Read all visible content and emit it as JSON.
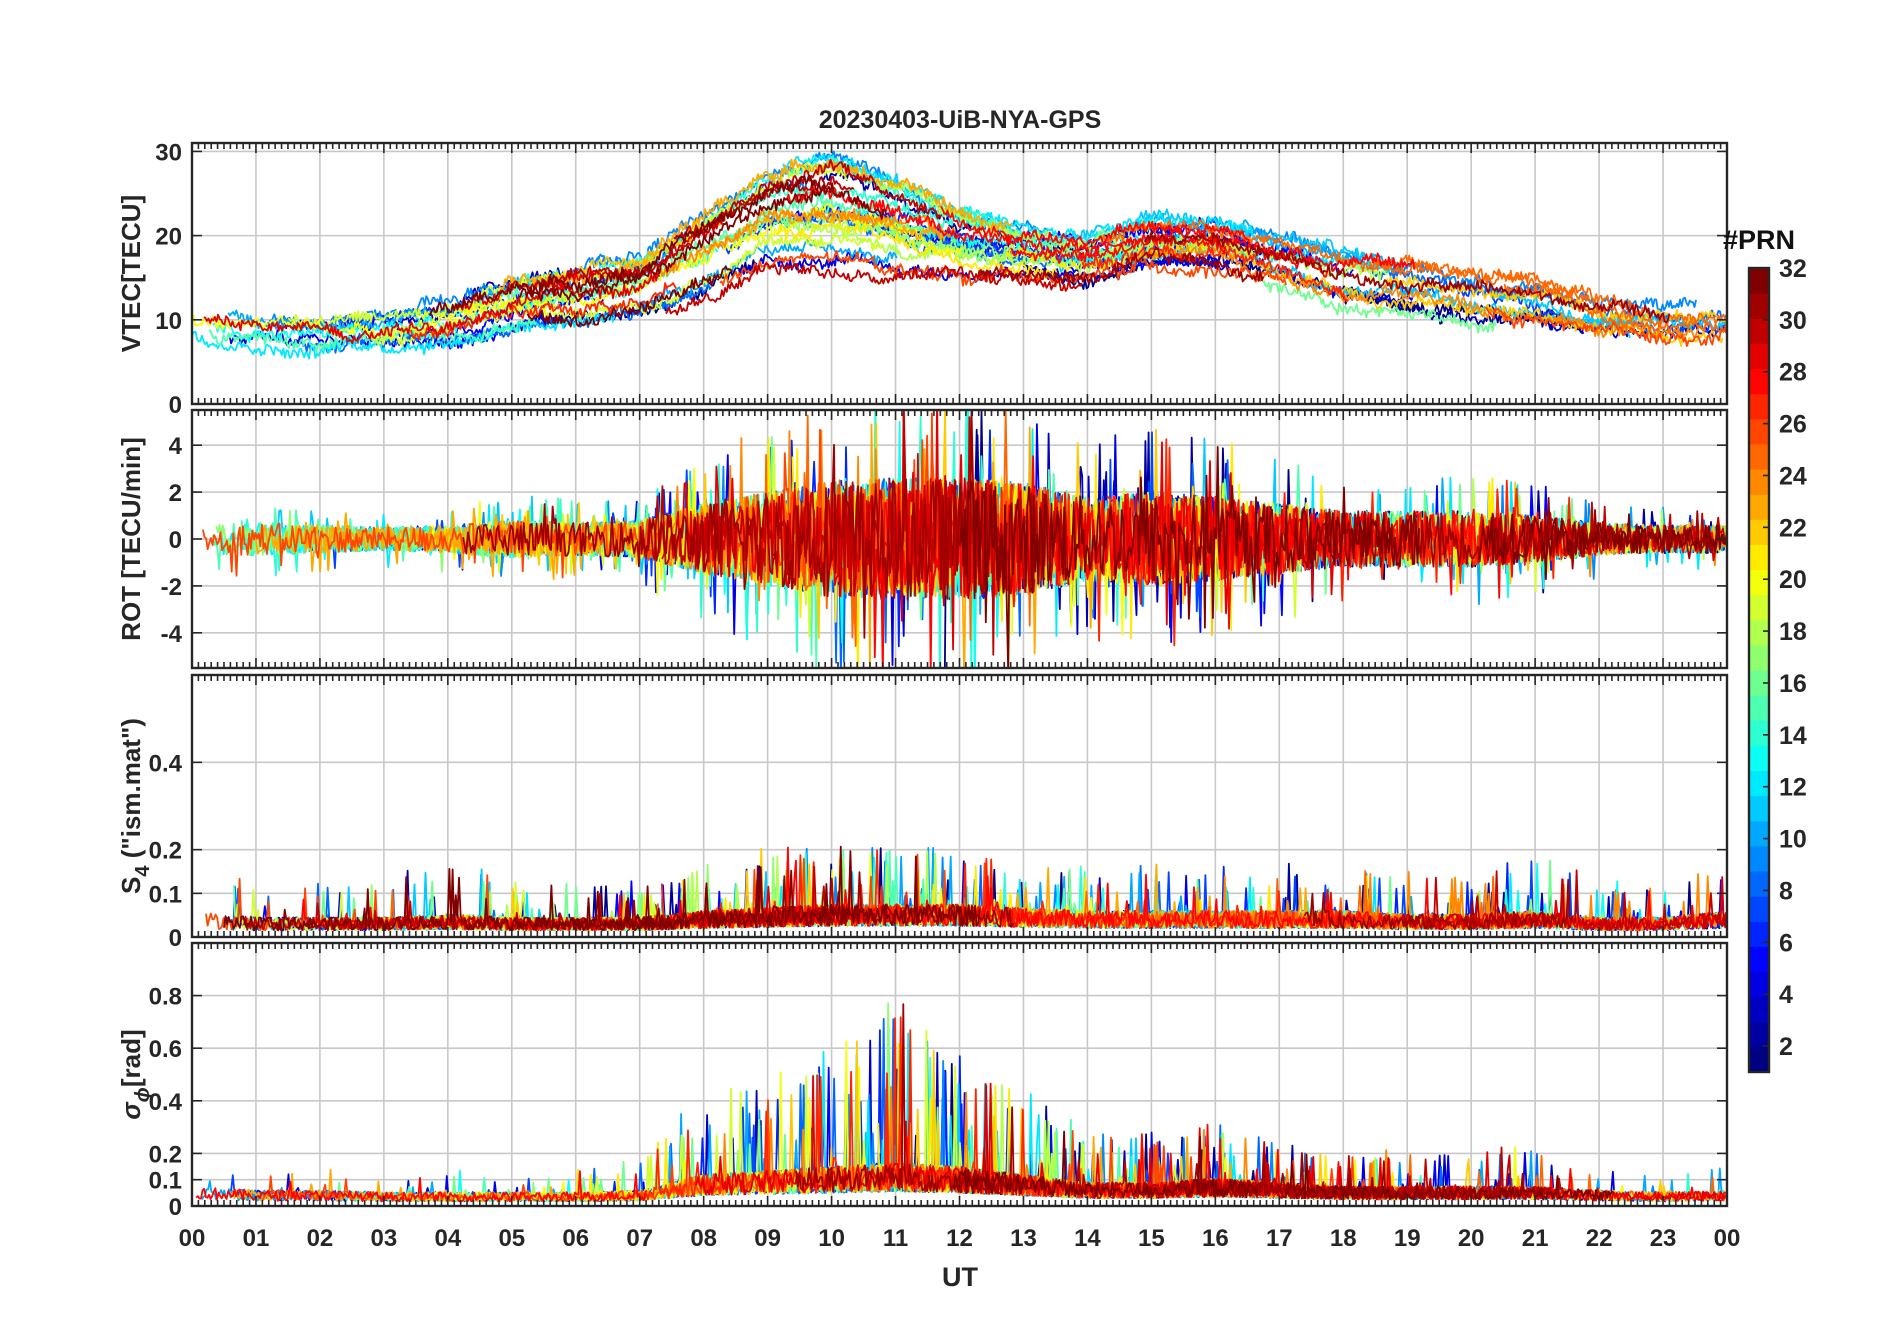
{
  "chart_data": {
    "type": "line",
    "title": "20230403-UiB-NYA-GPS",
    "xlabel": "UT",
    "x_range": [
      0,
      24
    ],
    "x_tick_labels": [
      "00",
      "01",
      "02",
      "03",
      "04",
      "05",
      "06",
      "07",
      "08",
      "09",
      "10",
      "11",
      "12",
      "13",
      "14",
      "15",
      "16",
      "17",
      "18",
      "19",
      "20",
      "21",
      "22",
      "23",
      "00"
    ],
    "grid": true,
    "colorbar": {
      "title": "#PRN",
      "range": [
        1,
        32
      ],
      "ticks": [
        2,
        4,
        6,
        8,
        10,
        12,
        14,
        16,
        18,
        20,
        22,
        24,
        26,
        28,
        30,
        32
      ],
      "colormap": "jet",
      "placement": "right"
    },
    "panels": [
      {
        "id": "vtec",
        "ylabel": "VTEC[TECU]",
        "ylim": [
          0,
          31
        ],
        "yticks": [
          0,
          10,
          20,
          30
        ],
        "envelope": {
          "hours": [
            0,
            1,
            2,
            3,
            4,
            5,
            6,
            7,
            8,
            9,
            10,
            11,
            12,
            13,
            14,
            15,
            16,
            17,
            18,
            19,
            20,
            21,
            22,
            23,
            24
          ],
          "typical": [
            10,
            9,
            8.5,
            9,
            10,
            12,
            13,
            14,
            18,
            22,
            23,
            21,
            19,
            18,
            17,
            19,
            19,
            17,
            15,
            14,
            13,
            12,
            10,
            9,
            9
          ],
          "spread": [
            2,
            2,
            2,
            2,
            2.5,
            3,
            3.5,
            4,
            5,
            6,
            7,
            6,
            4,
            3,
            2.5,
            3,
            3,
            3,
            3,
            3,
            3,
            3,
            2.5,
            2,
            2
          ]
        }
      },
      {
        "id": "rot",
        "ylabel": "ROT [TECU/min]",
        "ylim": [
          -5.5,
          5.5
        ],
        "yticks": [
          -4,
          -2,
          0,
          2,
          4
        ],
        "envelope": {
          "hours": [
            0,
            1,
            2,
            3,
            4,
            5,
            6,
            7,
            8,
            9,
            10,
            11,
            12,
            13,
            14,
            15,
            16,
            17,
            18,
            19,
            20,
            21,
            22,
            23,
            24
          ],
          "typical": [
            0,
            0,
            0,
            0,
            0,
            0,
            0,
            0,
            0,
            0,
            0,
            0,
            0,
            0,
            0,
            0,
            0,
            0,
            0,
            0,
            0,
            0,
            0,
            0,
            0
          ],
          "spread": [
            0.6,
            0.7,
            0.6,
            0.5,
            0.6,
            0.8,
            0.7,
            0.8,
            1.5,
            2,
            2.5,
            2.6,
            2.6,
            2.4,
            1.8,
            2,
            1.8,
            1.5,
            1.2,
            1.2,
            1.2,
            1,
            0.7,
            0.6,
            0.6
          ]
        }
      },
      {
        "id": "s4",
        "ylabel": "S",
        "ylabel_sub": "4",
        "ylabel_rest": " (\"ism.mat\")",
        "ylim": [
          0,
          0.6
        ],
        "yticks": [
          0,
          0.1,
          0.2,
          0.4
        ],
        "envelope": {
          "hours": [
            0,
            1,
            2,
            3,
            4,
            5,
            6,
            7,
            8,
            9,
            10,
            11,
            12,
            13,
            14,
            15,
            16,
            17,
            18,
            19,
            20,
            21,
            22,
            23,
            24
          ],
          "typical": [
            0.04,
            0.03,
            0.03,
            0.03,
            0.035,
            0.03,
            0.03,
            0.03,
            0.04,
            0.045,
            0.05,
            0.05,
            0.05,
            0.045,
            0.04,
            0.04,
            0.04,
            0.04,
            0.04,
            0.035,
            0.035,
            0.04,
            0.03,
            0.03,
            0.04
          ],
          "spread": [
            0.04,
            0.03,
            0.03,
            0.03,
            0.05,
            0.03,
            0.03,
            0.03,
            0.04,
            0.05,
            0.05,
            0.06,
            0.05,
            0.04,
            0.04,
            0.04,
            0.04,
            0.04,
            0.04,
            0.04,
            0.04,
            0.05,
            0.03,
            0.03,
            0.04
          ]
        }
      },
      {
        "id": "sigma",
        "ylabel": "σ",
        "ylabel_sub": "ϕ",
        "ylabel_rest": "[rad]",
        "ylim": [
          0,
          1
        ],
        "yticks": [
          0,
          0.1,
          0.2,
          0.4,
          0.6,
          0.8
        ],
        "envelope": {
          "hours": [
            0,
            1,
            2,
            3,
            4,
            5,
            6,
            7,
            8,
            9,
            10,
            11,
            12,
            13,
            14,
            15,
            16,
            17,
            18,
            19,
            20,
            21,
            22,
            23,
            24
          ],
          "typical": [
            0.05,
            0.04,
            0.04,
            0.035,
            0.035,
            0.035,
            0.035,
            0.04,
            0.08,
            0.09,
            0.1,
            0.11,
            0.1,
            0.08,
            0.06,
            0.06,
            0.07,
            0.06,
            0.05,
            0.05,
            0.05,
            0.05,
            0.04,
            0.035,
            0.04
          ],
          "spread": [
            0.05,
            0.04,
            0.04,
            0.03,
            0.03,
            0.03,
            0.03,
            0.05,
            0.12,
            0.13,
            0.18,
            0.22,
            0.15,
            0.12,
            0.07,
            0.07,
            0.09,
            0.06,
            0.05,
            0.05,
            0.05,
            0.06,
            0.04,
            0.03,
            0.04
          ]
        }
      }
    ],
    "series_count": 32
  }
}
